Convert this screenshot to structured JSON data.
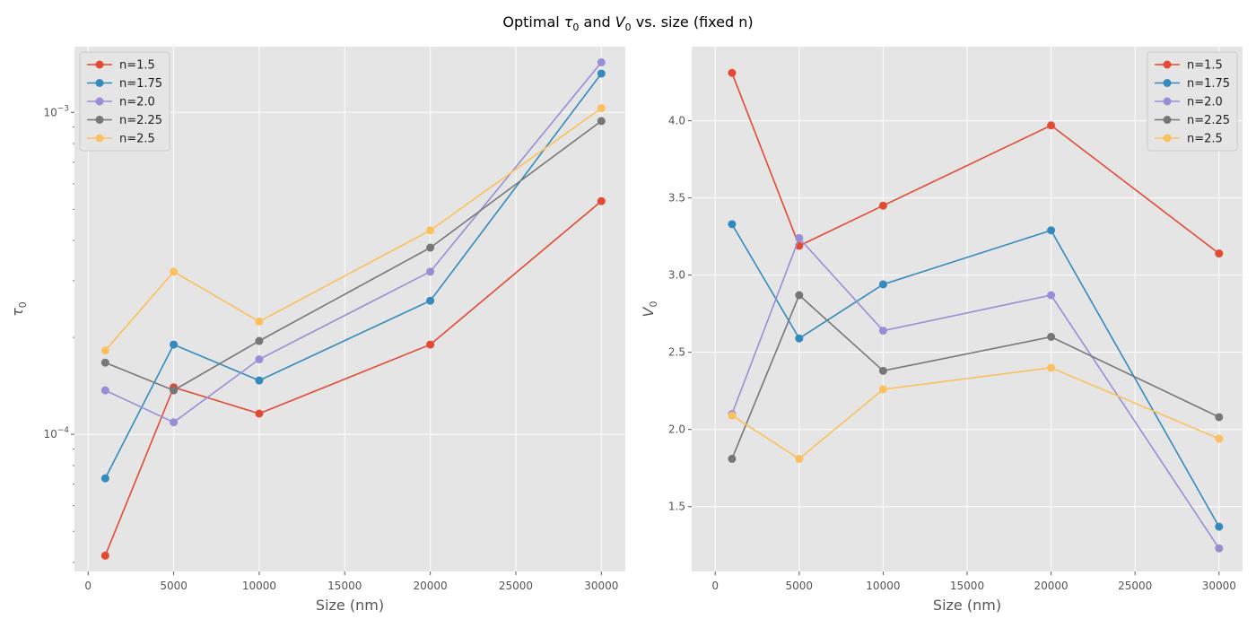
{
  "figure": {
    "title_parts": [
      "Optimal ",
      "τ",
      "0",
      " and ",
      "V",
      "0",
      " vs. size (fixed n)"
    ]
  },
  "legend_entries": [
    "n=1.5",
    "n=1.75",
    "n=2.0",
    "n=2.25",
    "n=2.5"
  ],
  "colors": {
    "plot_bg": "#e5e5e5",
    "grid": "#ffffff",
    "tick_text": "#555555",
    "label_text": "#555555",
    "series": [
      "#e24a33",
      "#348abd",
      "#988ed5",
      "#777777",
      "#fbc15e"
    ]
  },
  "chart_data": [
    {
      "type": "line",
      "markers": "circle",
      "xlabel": "Size (nm)",
      "ylabel_parts": [
        "τ",
        "0"
      ],
      "yscale": "log",
      "xlim": [
        -800,
        31400
      ],
      "ylim": [
        3.75e-05,
        0.0016
      ],
      "x_ticks": [
        0,
        5000,
        10000,
        15000,
        20000,
        25000,
        30000
      ],
      "y_major_ticks": [
        {
          "value": 0.0001,
          "base": "10",
          "exp": "−4"
        },
        {
          "value": 0.001,
          "base": "10",
          "exp": "−3"
        }
      ],
      "grid": true,
      "legend_position": "upper-left",
      "x": [
        1000,
        5000,
        10000,
        20000,
        30000
      ],
      "series": [
        {
          "name": "n=1.5",
          "values": [
            4.2e-05,
            0.00014,
            0.000116,
            0.00019,
            0.00053
          ]
        },
        {
          "name": "n=1.75",
          "values": [
            7.3e-05,
            0.00019,
            0.000147,
            0.00026,
            0.00132
          ]
        },
        {
          "name": "n=2.0",
          "values": [
            0.000137,
            0.000109,
            0.000171,
            0.00032,
            0.00143
          ]
        },
        {
          "name": "n=2.25",
          "values": [
            0.000167,
            0.000137,
            0.000195,
            0.00038,
            0.00094
          ]
        },
        {
          "name": "n=2.5",
          "values": [
            0.000182,
            0.00032,
            0.000224,
            0.00043,
            0.00103
          ]
        }
      ]
    },
    {
      "type": "line",
      "markers": "circle",
      "xlabel": "Size (nm)",
      "ylabel_parts": [
        "V",
        "0"
      ],
      "yscale": "linear",
      "xlim": [
        -1400,
        31400
      ],
      "ylim": [
        1.08,
        4.48
      ],
      "x_ticks": [
        0,
        5000,
        10000,
        15000,
        20000,
        25000,
        30000
      ],
      "y_ticks": [
        1.5,
        2.0,
        2.5,
        3.0,
        3.5,
        4.0
      ],
      "grid": true,
      "legend_position": "upper-right",
      "x": [
        1000,
        5000,
        10000,
        20000,
        30000
      ],
      "series": [
        {
          "name": "n=1.5",
          "values": [
            4.31,
            3.19,
            3.45,
            3.97,
            3.14
          ]
        },
        {
          "name": "n=1.75",
          "values": [
            3.33,
            2.59,
            2.94,
            3.29,
            1.37
          ]
        },
        {
          "name": "n=2.0",
          "values": [
            2.1,
            3.24,
            2.64,
            2.87,
            1.23
          ]
        },
        {
          "name": "n=2.25",
          "values": [
            1.81,
            2.87,
            2.38,
            2.6,
            2.08
          ]
        },
        {
          "name": "n=2.5",
          "values": [
            2.09,
            1.81,
            2.26,
            2.4,
            1.94
          ]
        }
      ]
    }
  ]
}
